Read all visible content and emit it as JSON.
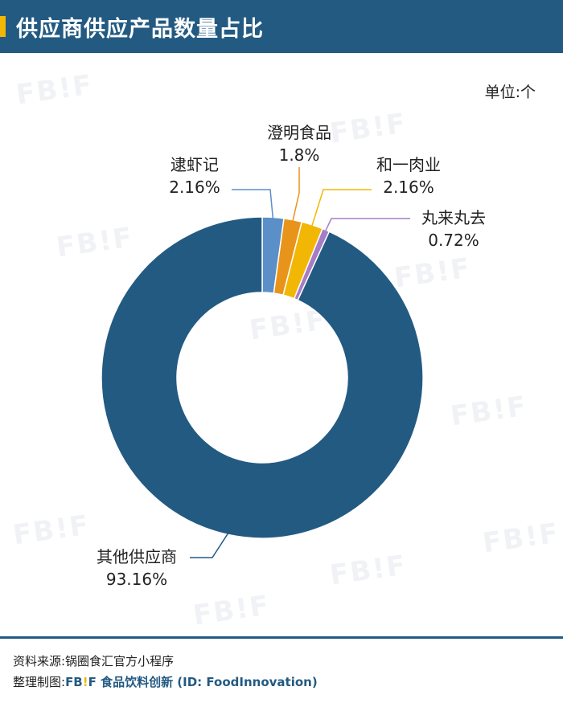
{
  "header": {
    "title": "供应商供应产品数量占比"
  },
  "unit_label": "单位:个",
  "watermark_text": "FB!F",
  "footer": {
    "source": "资料来源:锅圈食汇官方小程序",
    "credit_prefix": "整理制图:",
    "credit_logo_left": "FB",
    "credit_logo_excl": "!",
    "credit_logo_right": "F",
    "credit_brand": " 食品饮料创新 (ID: FoodInnovation)"
  },
  "colors": {
    "header_bg": "#235a82",
    "accent": "#f2b705"
  },
  "chart_data": {
    "type": "pie",
    "style": "donut",
    "unit": "个",
    "slices": [
      {
        "name": "逮虾记",
        "value": 2.16,
        "label": "2.16%",
        "color": "#5b8fc7"
      },
      {
        "name": "澄明食品",
        "value": 1.8,
        "label": "1.8%",
        "color": "#e8941a"
      },
      {
        "name": "和一肉业",
        "value": 2.16,
        "label": "2.16%",
        "color": "#f2b705"
      },
      {
        "name": "丸来丸去",
        "value": 0.72,
        "label": "0.72%",
        "color": "#a77cc7"
      },
      {
        "name": "其他供应商",
        "value": 93.16,
        "label": "93.16%",
        "color": "#235a82"
      }
    ]
  }
}
